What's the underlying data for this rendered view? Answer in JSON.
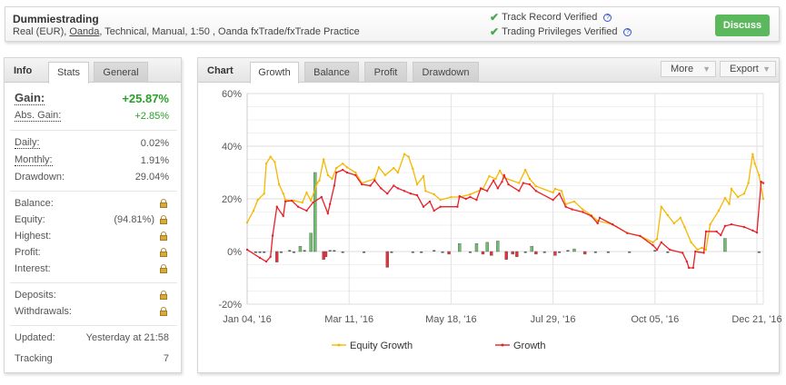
{
  "header": {
    "name": "Dummiestrading",
    "sub_pre": "Real (EUR), ",
    "broker": "Oanda",
    "sub_post": ", Technical, Manual, 1:50 , Oanda fxTrade/fxTrade Practice",
    "verified1": "Track Record Verified",
    "verified2": "Trading Privileges Verified",
    "discuss": "Discuss"
  },
  "info": {
    "title": "Info",
    "tabs": [
      "Stats",
      "General"
    ],
    "gain_label": "Gain:",
    "gain": "+25.87%",
    "abs_label": "Abs. Gain:",
    "abs": "+2.85%",
    "daily_label": "Daily:",
    "daily": "0.02%",
    "monthly_label": "Monthly:",
    "monthly": "1.91%",
    "drawdown_label": "Drawdown:",
    "drawdown": "29.04%",
    "balance_label": "Balance:",
    "equity_label": "Equity:",
    "equity": "(94.81%)",
    "highest_label": "Highest:",
    "profit_label": "Profit:",
    "interest_label": "Interest:",
    "deposits_label": "Deposits:",
    "withdrawals_label": "Withdrawals:",
    "updated_label": "Updated:",
    "updated": "Yesterday at 21:58",
    "tracking_label": "Tracking",
    "tracking": "7"
  },
  "chartpanel": {
    "title": "Chart",
    "tabs": [
      "Growth",
      "Balance",
      "Profit",
      "Drawdown"
    ],
    "more": "More",
    "export": "Export"
  },
  "colors": {
    "equity": "#f5b800",
    "growth": "#e8202a",
    "bar_pos": "#6cbf6c",
    "bar_neg": "#e8303a",
    "green": "#2aa02a"
  },
  "chart_data": {
    "type": "line",
    "title": "Growth",
    "ylabel": "",
    "xlabel": "",
    "ylim": [
      -20,
      60
    ],
    "yticks": [
      "60%",
      "40%",
      "20%",
      "0%",
      "-20%"
    ],
    "ytick_values": [
      60,
      40,
      20,
      0,
      -20
    ],
    "xlim": [
      0,
      243
    ],
    "xticks": [
      {
        "i": 0,
        "label": "Jan 04, '16"
      },
      {
        "i": 48,
        "label": "Mar 11, '16"
      },
      {
        "i": 96,
        "label": "May 18, '16"
      },
      {
        "i": 144,
        "label": "Jul 29, '16"
      },
      {
        "i": 192,
        "label": "Oct 05, '16"
      },
      {
        "i": 240,
        "label": "Dec 21, '16"
      }
    ],
    "legend": [
      "Equity Growth",
      "Growth"
    ],
    "legend_position": "bottom",
    "series": [
      {
        "name": "Equity Growth",
        "points": [
          [
            0,
            11
          ],
          [
            3,
            15.5
          ],
          [
            5,
            19.6
          ],
          [
            8,
            22
          ],
          [
            9,
            33.4
          ],
          [
            11,
            36
          ],
          [
            13,
            34
          ],
          [
            15,
            25.5
          ],
          [
            17,
            22
          ],
          [
            18,
            19.6
          ],
          [
            22,
            19.3
          ],
          [
            26,
            18.6
          ],
          [
            28,
            22.4
          ],
          [
            30,
            19.3
          ],
          [
            33,
            26
          ],
          [
            34,
            27
          ],
          [
            36,
            35
          ],
          [
            38,
            29
          ],
          [
            40,
            27.6
          ],
          [
            42,
            31.7
          ],
          [
            45,
            33.4
          ],
          [
            47,
            32
          ],
          [
            51,
            30
          ],
          [
            54,
            26
          ],
          [
            60,
            27.6
          ],
          [
            62,
            32
          ],
          [
            65,
            29
          ],
          [
            69,
            31.7
          ],
          [
            71,
            30
          ],
          [
            74,
            37
          ],
          [
            76,
            36
          ],
          [
            78,
            31.4
          ],
          [
            80,
            25.5
          ],
          [
            83,
            28.6
          ],
          [
            84,
            23
          ],
          [
            88,
            21.7
          ],
          [
            91,
            19.6
          ],
          [
            96,
            20.7
          ],
          [
            100,
            20.7
          ],
          [
            105,
            21.7
          ],
          [
            111,
            23.8
          ],
          [
            114,
            28.6
          ],
          [
            117,
            27.6
          ],
          [
            119,
            30.7
          ],
          [
            121,
            28
          ],
          [
            128,
            26
          ],
          [
            131,
            31
          ],
          [
            133,
            27.6
          ],
          [
            136,
            24.8
          ],
          [
            144,
            22.4
          ],
          [
            145,
            23.8
          ],
          [
            148,
            23
          ],
          [
            150,
            18
          ],
          [
            154,
            19
          ],
          [
            158,
            16
          ],
          [
            162,
            13.8
          ],
          [
            165,
            11.7
          ],
          [
            172,
            10.3
          ],
          [
            179,
            7
          ],
          [
            185,
            5.9
          ],
          [
            191,
            3.5
          ],
          [
            193,
            4.8
          ],
          [
            195,
            17
          ],
          [
            198,
            13.8
          ],
          [
            201,
            10.7
          ],
          [
            204,
            12.8
          ],
          [
            206,
            9.3
          ],
          [
            209,
            3.5
          ],
          [
            212,
            0.7
          ],
          [
            214,
            1.4
          ],
          [
            216,
            0.7
          ],
          [
            218,
            10.3
          ],
          [
            222,
            15.5
          ],
          [
            225,
            20.3
          ],
          [
            227,
            18
          ],
          [
            228,
            23.8
          ],
          [
            231,
            20.7
          ],
          [
            234,
            22
          ],
          [
            236,
            26
          ],
          [
            238,
            37
          ],
          [
            239,
            33.4
          ],
          [
            241,
            29
          ],
          [
            243,
            20
          ]
        ]
      },
      {
        "name": "Growth",
        "points": [
          [
            0,
            0.7
          ],
          [
            6,
            -2.4
          ],
          [
            9,
            -3.8
          ],
          [
            11,
            -2
          ],
          [
            12,
            6
          ],
          [
            14,
            17
          ],
          [
            17,
            13.5
          ],
          [
            18,
            19
          ],
          [
            21,
            19.3
          ],
          [
            24,
            17
          ],
          [
            28,
            15.5
          ],
          [
            31,
            18.6
          ],
          [
            35,
            20.7
          ],
          [
            38,
            14.5
          ],
          [
            39,
            18
          ],
          [
            41,
            25
          ],
          [
            42,
            30
          ],
          [
            45,
            31
          ],
          [
            47,
            30
          ],
          [
            51,
            29
          ],
          [
            54,
            25.5
          ],
          [
            58,
            25
          ],
          [
            60,
            27
          ],
          [
            63,
            24
          ],
          [
            66,
            22
          ],
          [
            69,
            25
          ],
          [
            71,
            24
          ],
          [
            74,
            23
          ],
          [
            77,
            22
          ],
          [
            80,
            21.4
          ],
          [
            83,
            17
          ],
          [
            86,
            19
          ],
          [
            88,
            15.5
          ],
          [
            91,
            17
          ],
          [
            99,
            17
          ],
          [
            100,
            21
          ],
          [
            103,
            20
          ],
          [
            105,
            20.7
          ],
          [
            108,
            19.6
          ],
          [
            110,
            24
          ],
          [
            113,
            23
          ],
          [
            116,
            27
          ],
          [
            118,
            24
          ],
          [
            120,
            26.5
          ],
          [
            121,
            29
          ],
          [
            123,
            25.5
          ],
          [
            128,
            23
          ],
          [
            130,
            26
          ],
          [
            133,
            25.5
          ],
          [
            136,
            23
          ],
          [
            144,
            19.6
          ],
          [
            147,
            22
          ],
          [
            150,
            17
          ],
          [
            153,
            16
          ],
          [
            158,
            15
          ],
          [
            162,
            13.5
          ],
          [
            165,
            10.7
          ],
          [
            166,
            12.8
          ],
          [
            172,
            10.3
          ],
          [
            179,
            7
          ],
          [
            185,
            5.9
          ],
          [
            191,
            2.4
          ],
          [
            193,
            0.7
          ],
          [
            195,
            3.5
          ],
          [
            199,
            0.7
          ],
          [
            205,
            -0.5
          ],
          [
            207,
            -3.8
          ],
          [
            208,
            -6.2
          ],
          [
            210,
            -6.2
          ],
          [
            211,
            0
          ],
          [
            215,
            -0.5
          ],
          [
            216,
            7.6
          ],
          [
            221,
            7.6
          ],
          [
            223,
            6.2
          ],
          [
            225,
            9.7
          ],
          [
            228,
            10.3
          ],
          [
            234,
            9.3
          ],
          [
            238,
            8
          ],
          [
            240,
            7.2
          ],
          [
            242,
            26.5
          ],
          [
            243,
            26
          ]
        ]
      }
    ],
    "bars": [
      [
        4,
        -0.5
      ],
      [
        6,
        -0.5
      ],
      [
        8,
        -0.5
      ],
      [
        14,
        -4
      ],
      [
        16,
        -0.5
      ],
      [
        20,
        0.5
      ],
      [
        22,
        -0.5
      ],
      [
        25,
        2
      ],
      [
        27,
        0.5
      ],
      [
        30,
        7
      ],
      [
        32,
        30
      ],
      [
        36,
        -3
      ],
      [
        37,
        -2
      ],
      [
        39,
        0.5
      ],
      [
        41,
        0.5
      ],
      [
        45,
        -0.3
      ],
      [
        55,
        -0.3
      ],
      [
        66,
        -6
      ],
      [
        68,
        -0.5
      ],
      [
        78,
        -0.3
      ],
      [
        82,
        -0.4
      ],
      [
        88,
        0.4
      ],
      [
        92,
        -0.5
      ],
      [
        95,
        -1
      ],
      [
        100,
        3
      ],
      [
        105,
        -0.3
      ],
      [
        108,
        3
      ],
      [
        111,
        -1
      ],
      [
        113,
        3.5
      ],
      [
        115,
        -1.5
      ],
      [
        118,
        4
      ],
      [
        122,
        -3
      ],
      [
        125,
        -1
      ],
      [
        127,
        -2
      ],
      [
        131,
        -0.5
      ],
      [
        134,
        2
      ],
      [
        136,
        -1
      ],
      [
        140,
        -0.3
      ],
      [
        145,
        -1.5
      ],
      [
        147,
        -0.5
      ],
      [
        151,
        0.5
      ],
      [
        154,
        1
      ],
      [
        159,
        -1
      ],
      [
        164,
        -0.3
      ],
      [
        170,
        -0.3
      ],
      [
        180,
        -0.3
      ],
      [
        192,
        0.5
      ],
      [
        198,
        -0.3
      ],
      [
        213,
        -0.3
      ],
      [
        225,
        5
      ],
      [
        241,
        -0.5
      ]
    ]
  }
}
